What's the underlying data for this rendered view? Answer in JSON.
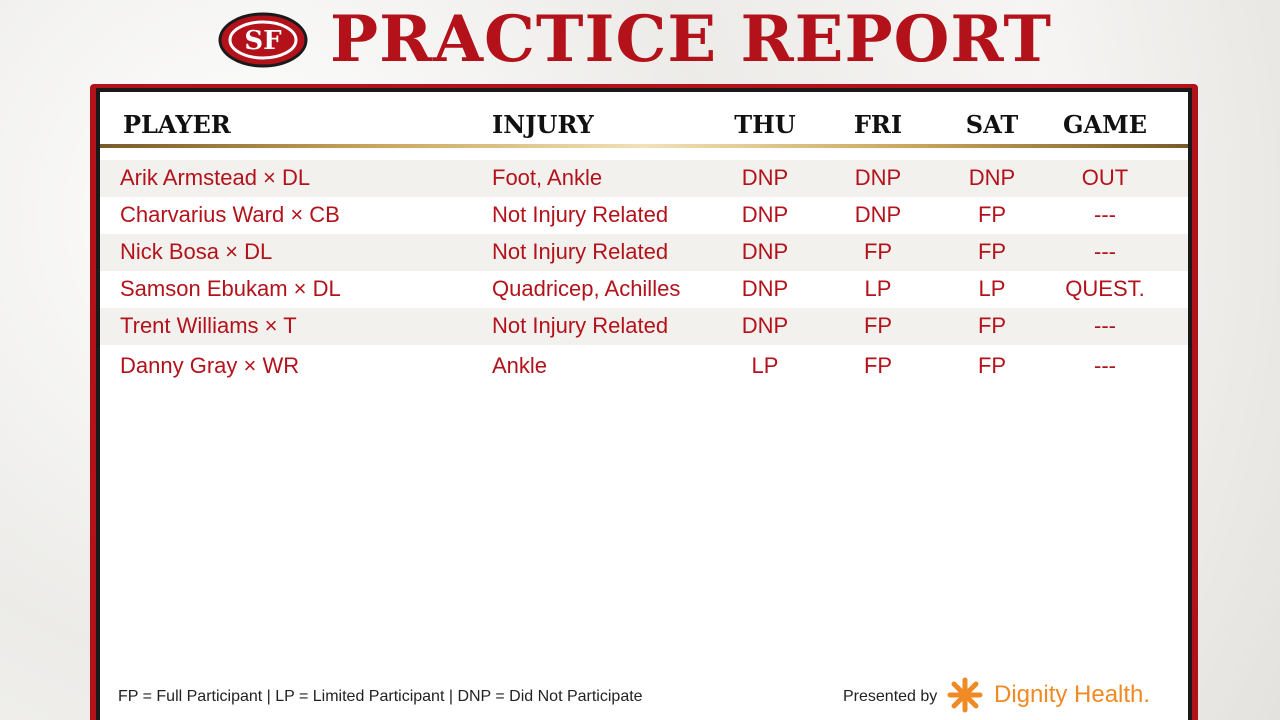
{
  "header": {
    "logo": "SF",
    "title": "PRACTICE REPORT"
  },
  "table": {
    "columns": [
      "PLAYER",
      "INJURY",
      "THU",
      "FRI",
      "SAT",
      "GAME"
    ],
    "rows": [
      [
        "Arik Armstead × DL",
        "Foot, Ankle",
        "DNP",
        "DNP",
        "DNP",
        "OUT"
      ],
      [
        "Charvarius Ward × CB",
        "Not Injury Related",
        "DNP",
        "DNP",
        "FP",
        "---"
      ],
      [
        "Nick Bosa × DL",
        "Not Injury Related",
        "DNP",
        "FP",
        "FP",
        "---"
      ],
      [
        "Samson Ebukam × DL",
        "Quadricep, Achilles",
        "DNP",
        "LP",
        "LP",
        "QUEST."
      ],
      [
        "Trent Williams × T",
        "Not Injury Related",
        "DNP",
        "FP",
        "FP",
        "---"
      ],
      [
        "Danny Gray × WR",
        "Ankle",
        "LP",
        "FP",
        "FP",
        "---"
      ]
    ]
  },
  "footer": {
    "legend": "FP = Full Participant | LP = Limited Participant | DNP = Did Not Participate",
    "presented_by": "Presented by",
    "sponsor": "Dignity Health."
  }
}
